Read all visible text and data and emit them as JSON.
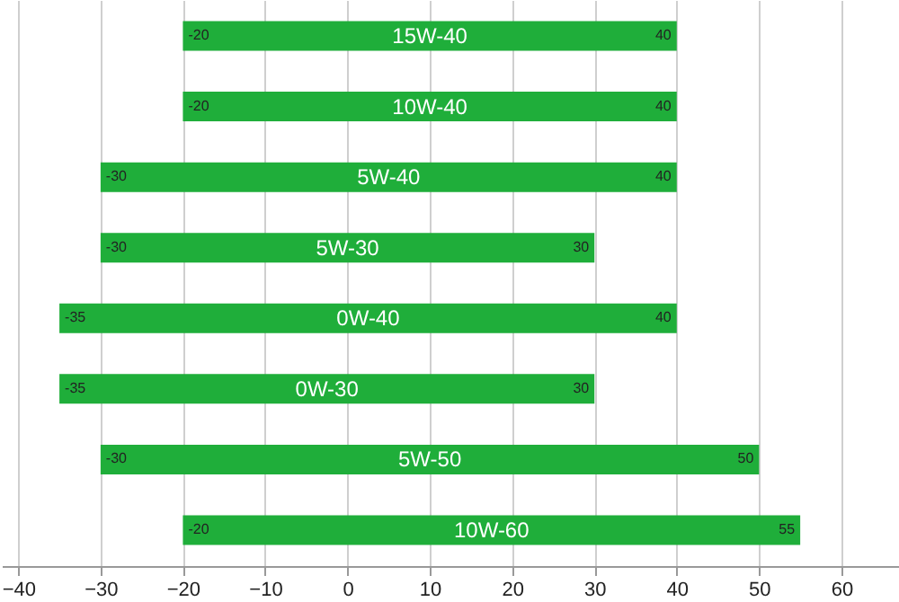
{
  "chart_data": {
    "type": "bar",
    "orientation": "horizontal",
    "categories": [
      "15W-40",
      "10W-40",
      "5W-40",
      "5W-30",
      "0W-40",
      "0W-30",
      "5W-50",
      "10W-60"
    ],
    "base": [
      -20,
      -20,
      -30,
      -30,
      -35,
      -35,
      -30,
      -20
    ],
    "values": [
      60,
      60,
      70,
      60,
      75,
      65,
      80,
      75
    ],
    "color": "#1fae3a",
    "xlim": [
      -42,
      67
    ],
    "xticks": [
      -40,
      -30,
      -20,
      -10,
      0,
      10,
      20,
      30,
      40,
      50,
      60
    ],
    "grid": "x",
    "tick_labels": "x",
    "annotations": [
      {
        "text": "-20",
        "x": -20,
        "y": "15W-40"
      },
      {
        "text": "40",
        "x": 40,
        "y": "15W-40"
      },
      {
        "text": "-20",
        "x": -20,
        "y": "10W-40"
      },
      {
        "text": "40",
        "x": 40,
        "y": "10W-40"
      },
      {
        "text": "-30",
        "x": -30,
        "y": "5W-40"
      },
      {
        "text": "40",
        "x": 40,
        "y": "5W-40"
      },
      {
        "text": "-30",
        "x": -30,
        "y": "5W-30"
      },
      {
        "text": "30",
        "x": 30,
        "y": "5W-30"
      },
      {
        "text": "-35",
        "x": -35,
        "y": "0W-40"
      },
      {
        "text": "40",
        "x": 40,
        "y": "0W-40"
      },
      {
        "text": "-35",
        "x": -35,
        "y": "0W-30"
      },
      {
        "text": "30",
        "x": 30,
        "y": "0W-30"
      },
      {
        "text": "-30",
        "x": -30,
        "y": "5W-50"
      },
      {
        "text": "50",
        "x": 50,
        "y": "5W-50"
      },
      {
        "text": "-20",
        "x": -20,
        "y": "10W-60"
      },
      {
        "text": "55",
        "x": 55,
        "y": "10W-60"
      }
    ]
  }
}
